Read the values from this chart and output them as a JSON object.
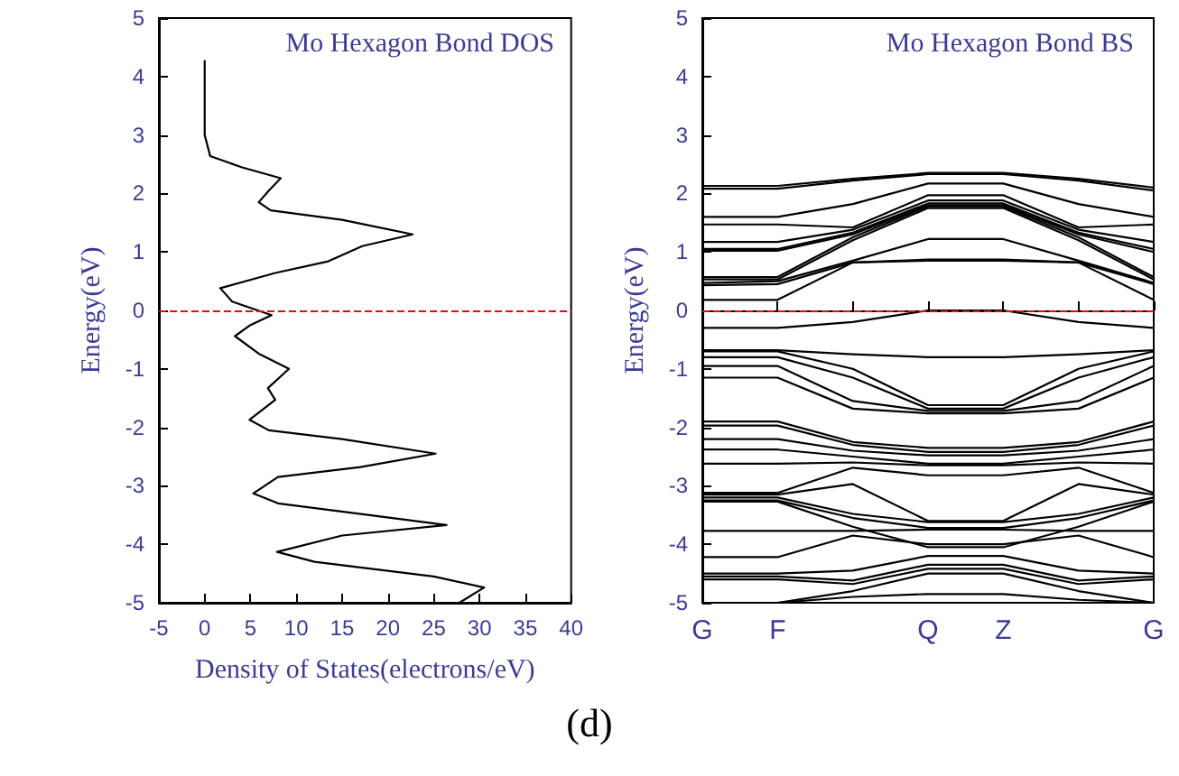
{
  "chart_data": [
    {
      "type": "line",
      "title": "Mo Hexagon Bond DOS",
      "xlabel": "Density of States(electrons/eV)",
      "ylabel": "Energy(eV)",
      "marker": "none",
      "x": [
        0,
        0,
        0.6,
        4,
        8.3,
        7,
        5.9,
        7.2,
        15,
        22.7,
        17.2,
        13.5,
        7.7,
        1.7,
        3,
        7.3,
        5,
        3.3,
        6,
        9.2,
        6.9,
        7.7,
        4.9,
        7,
        15,
        25.2,
        17,
        8,
        5.3,
        8,
        18,
        26.4,
        15,
        7.9,
        12,
        25,
        30.5,
        27.8
      ],
      "series": [
        {
          "color": "#000000",
          "values": [
            4.28,
            3.0,
            2.64,
            2.45,
            2.26,
            2.05,
            1.85,
            1.71,
            1.55,
            1.3,
            1.1,
            0.84,
            0.64,
            0.38,
            0.15,
            -0.08,
            -0.25,
            -0.44,
            -0.75,
            -1.0,
            -1.33,
            -1.53,
            -1.87,
            -2.05,
            -2.2,
            -2.45,
            -2.68,
            -2.85,
            -3.13,
            -3.3,
            -3.5,
            -3.67,
            -3.85,
            -4.13,
            -4.3,
            -4.55,
            -4.74,
            -5.0
          ]
        }
      ],
      "xlim": [
        -5,
        40
      ],
      "xticks": [
        -5,
        0,
        5,
        10,
        15,
        20,
        25,
        30,
        35,
        40
      ],
      "ylim": [
        -5,
        5
      ],
      "yticks": [
        -5,
        -4,
        -3,
        -2,
        -1,
        0,
        1,
        2,
        3,
        4,
        5
      ],
      "ref_lines": [
        {
          "axis": "y",
          "value": 0,
          "color": "#ff0000",
          "line_style": "dashed"
        }
      ]
    },
    {
      "type": "line",
      "title": "Mo Hexagon Bond BS",
      "ylabel": "Energy(eV)",
      "marker": "none",
      "annotations": [
        "(d)"
      ],
      "categories": [
        "G",
        "F",
        null,
        "Q",
        "Z",
        null,
        "G"
      ],
      "series": [
        {
          "color": "#000000",
          "values": [
            2.13,
            2.13,
            2.25,
            2.35,
            2.35,
            2.25,
            2.1
          ]
        },
        {
          "color": "#000000",
          "values": [
            2.08,
            2.08,
            2.22,
            2.33,
            2.33,
            2.22,
            2.05
          ]
        },
        {
          "color": "#000000",
          "values": [
            1.6,
            1.6,
            1.82,
            2.17,
            2.17,
            1.82,
            1.6
          ]
        },
        {
          "color": "#000000",
          "values": [
            1.47,
            1.47,
            1.42,
            1.97,
            1.97,
            1.42,
            1.47
          ]
        },
        {
          "color": "#000000",
          "values": [
            1.17,
            1.17,
            1.38,
            1.88,
            1.88,
            1.38,
            1.17
          ]
        },
        {
          "color": "#000000",
          "values": [
            1.05,
            1.05,
            1.33,
            1.83,
            1.83,
            1.33,
            1.05
          ]
        },
        {
          "color": "#000000",
          "values": [
            1.02,
            1.02,
            1.3,
            1.8,
            1.8,
            1.3,
            1.0
          ]
        },
        {
          "color": "#000000",
          "values": [
            0.57,
            0.57,
            1.25,
            1.78,
            1.78,
            1.25,
            0.57
          ]
        },
        {
          "color": "#000000",
          "values": [
            0.53,
            0.53,
            1.2,
            1.75,
            1.75,
            1.2,
            0.53
          ]
        },
        {
          "color": "#000000",
          "values": [
            0.47,
            0.5,
            0.85,
            1.22,
            1.22,
            0.85,
            0.47
          ]
        },
        {
          "color": "#000000",
          "values": [
            0.43,
            0.45,
            0.82,
            0.87,
            0.87,
            0.82,
            0.45
          ]
        },
        {
          "color": "#000000",
          "values": [
            0.18,
            0.18,
            0.82,
            0.85,
            0.85,
            0.82,
            0.18
          ]
        },
        {
          "color": "#000000",
          "values": [
            -0.3,
            -0.3,
            -0.2,
            0.0,
            0.0,
            -0.2,
            -0.3
          ]
        },
        {
          "color": "#000000",
          "values": [
            -0.68,
            -0.68,
            -0.75,
            -0.8,
            -0.8,
            -0.75,
            -0.68
          ]
        },
        {
          "color": "#000000",
          "values": [
            -0.7,
            -0.7,
            -1.0,
            -1.62,
            -1.62,
            -1.0,
            -0.7
          ]
        },
        {
          "color": "#000000",
          "values": [
            -0.8,
            -0.8,
            -1.15,
            -1.68,
            -1.68,
            -1.15,
            -0.8
          ]
        },
        {
          "color": "#000000",
          "values": [
            -0.95,
            -0.95,
            -1.55,
            -1.72,
            -1.72,
            -1.55,
            -0.95
          ]
        },
        {
          "color": "#000000",
          "values": [
            -1.15,
            -1.15,
            -1.68,
            -1.76,
            -1.76,
            -1.68,
            -1.15
          ]
        },
        {
          "color": "#000000",
          "values": [
            -1.9,
            -1.9,
            -2.25,
            -2.35,
            -2.35,
            -2.25,
            -1.9
          ]
        },
        {
          "color": "#000000",
          "values": [
            -1.97,
            -1.97,
            -2.3,
            -2.42,
            -2.42,
            -2.3,
            -1.97
          ]
        },
        {
          "color": "#000000",
          "values": [
            -2.2,
            -2.2,
            -2.4,
            -2.48,
            -2.48,
            -2.4,
            -2.2
          ]
        },
        {
          "color": "#000000",
          "values": [
            -2.38,
            -2.38,
            -2.5,
            -2.62,
            -2.62,
            -2.5,
            -2.38
          ]
        },
        {
          "color": "#000000",
          "values": [
            -2.62,
            -2.62,
            -2.6,
            -2.65,
            -2.65,
            -2.6,
            -2.62
          ]
        },
        {
          "color": "#000000",
          "values": [
            -3.12,
            -3.12,
            -2.69,
            -2.82,
            -2.82,
            -2.69,
            -3.12
          ]
        },
        {
          "color": "#000000",
          "values": [
            -3.15,
            -3.15,
            -2.97,
            -3.6,
            -3.6,
            -2.97,
            -3.15
          ]
        },
        {
          "color": "#000000",
          "values": [
            -3.2,
            -3.2,
            -3.48,
            -3.62,
            -3.62,
            -3.48,
            -3.2
          ]
        },
        {
          "color": "#000000",
          "values": [
            -3.25,
            -3.25,
            -3.55,
            -3.72,
            -3.72,
            -3.55,
            -3.25
          ]
        },
        {
          "color": "#000000",
          "values": [
            -3.27,
            -3.27,
            -3.7,
            -4.05,
            -4.05,
            -3.7,
            -3.27
          ]
        },
        {
          "color": "#000000",
          "values": [
            -3.77,
            -3.77,
            -3.77,
            -3.75,
            -3.75,
            -3.77,
            -3.77
          ]
        },
        {
          "color": "#000000",
          "values": [
            -4.22,
            -4.22,
            -3.85,
            -4.0,
            -4.0,
            -3.85,
            -4.22
          ]
        },
        {
          "color": "#000000",
          "values": [
            -4.5,
            -4.5,
            -4.45,
            -4.2,
            -4.2,
            -4.45,
            -4.5
          ]
        },
        {
          "color": "#000000",
          "values": [
            -4.55,
            -4.55,
            -4.62,
            -4.35,
            -4.35,
            -4.62,
            -4.55
          ]
        },
        {
          "color": "#000000",
          "values": [
            -4.6,
            -4.6,
            -4.68,
            -4.42,
            -4.42,
            -4.68,
            -4.6
          ]
        },
        {
          "color": "#000000",
          "values": [
            -5.0,
            -5.0,
            -4.8,
            -4.5,
            -4.5,
            -4.8,
            -5.0
          ]
        },
        {
          "color": "#000000",
          "values": [
            -5.0,
            -5.0,
            -4.9,
            -4.85,
            -4.85,
            -4.95,
            -5.0
          ]
        }
      ],
      "ylim": [
        -5,
        5
      ],
      "yticks": [
        -5,
        -4,
        -3,
        -2,
        -1,
        0,
        1,
        2,
        3,
        4,
        5
      ],
      "ref_lines": [
        {
          "axis": "y",
          "value": 0,
          "color": "#ff0000",
          "line_style": "dashed"
        }
      ]
    }
  ]
}
